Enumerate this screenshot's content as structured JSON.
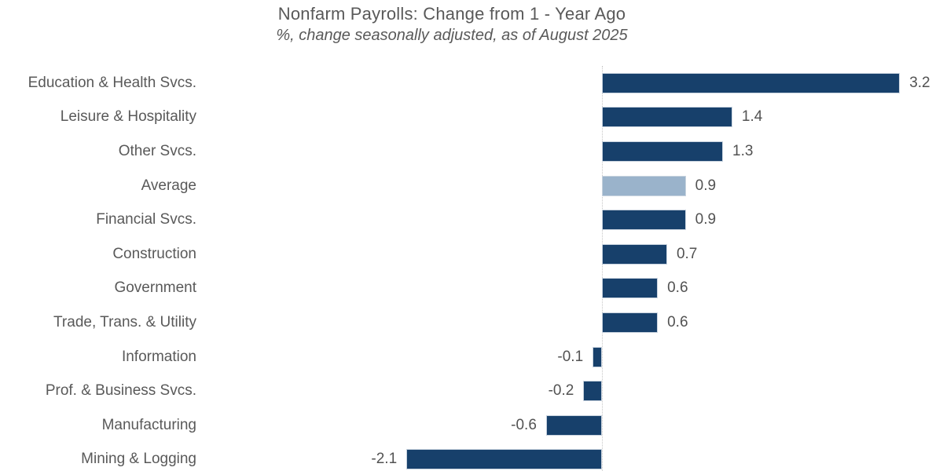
{
  "header": {
    "title": "Nonfarm Payrolls: Change from 1 - Year Ago",
    "subtitle": "%, change seasonally adjusted, as of August 2025"
  },
  "chart_data": {
    "type": "bar",
    "orientation": "horizontal",
    "title": "Nonfarm Payrolls: Change from 1 - Year Ago",
    "subtitle": "%, change seasonally adjusted, as of August 2025",
    "xlabel": "",
    "ylabel": "",
    "xlim": [
      -2.5,
      3.7
    ],
    "grid": false,
    "legend": "none",
    "zero_axis_line": true,
    "categories": [
      "Education & Health Svcs.",
      "Leisure & Hospitality",
      "Other Svcs.",
      "Average",
      "Financial Svcs.",
      "Construction",
      "Government",
      "Trade, Trans. & Utility",
      "Information",
      "Prof. & Business Svcs.",
      "Manufacturing",
      "Mining & Logging"
    ],
    "values": [
      3.2,
      1.4,
      1.3,
      0.9,
      0.9,
      0.7,
      0.6,
      0.6,
      -0.1,
      -0.2,
      -0.6,
      -2.1
    ],
    "value_labels": [
      "3.2",
      "1.4",
      "1.3",
      "0.9",
      "0.9",
      "0.7",
      "0.6",
      "0.6",
      "-0.1",
      "-0.2",
      "-0.6",
      "-2.1"
    ],
    "highlight_category": "Average"
  },
  "colors": {
    "bar": "#17406b",
    "bar_highlight": "#9ab3cb",
    "bar_border": "#c7d2de",
    "title_text": "#595959",
    "category_text": "#595959",
    "value_text": "#525252",
    "zero_line": "#c6c6c6",
    "background": "#ffffff"
  }
}
